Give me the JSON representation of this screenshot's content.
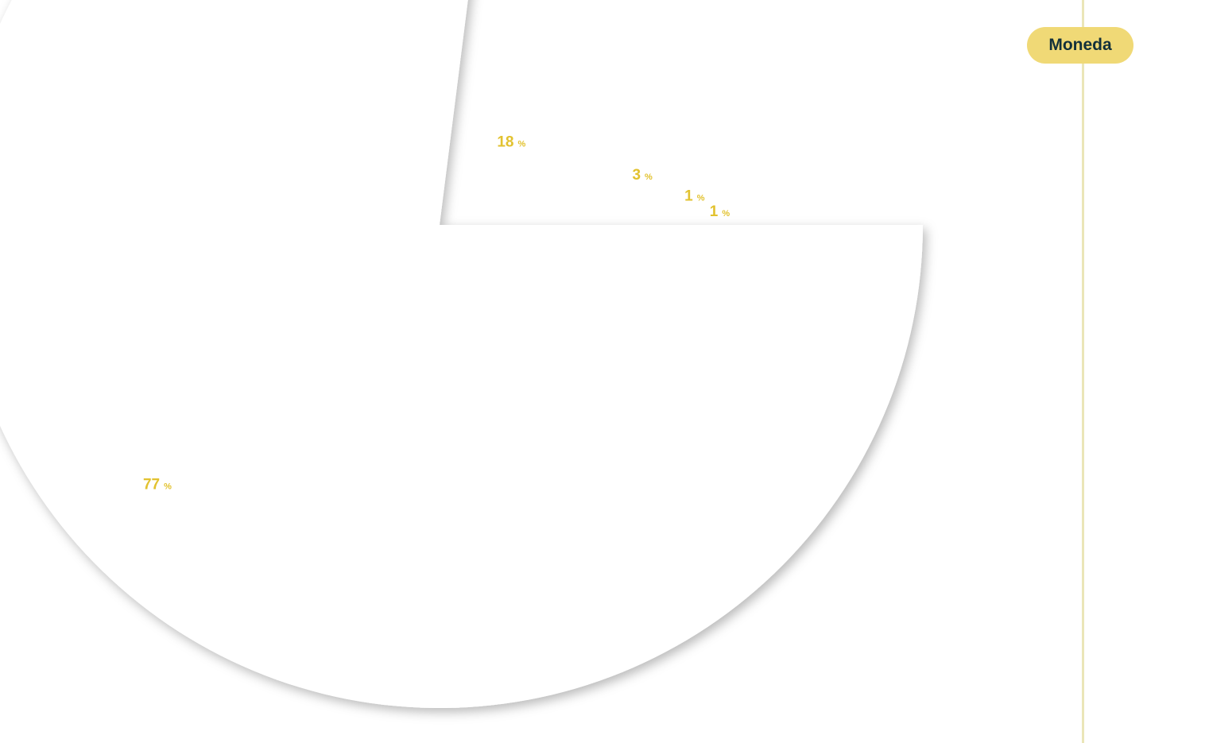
{
  "chart_data": {
    "type": "pie",
    "slices": [
      {
        "value": 77,
        "unit": "%"
      },
      {
        "value": 18,
        "unit": "%"
      },
      {
        "value": 3,
        "unit": "%"
      },
      {
        "value": 1,
        "unit": "%"
      },
      {
        "value": 1,
        "unit": "%"
      }
    ],
    "highlighted_slice_index": 0,
    "label_color": "#e2c22f",
    "slice_color": "#ffffff"
  },
  "legend": {
    "button_label": "Moneda",
    "button_color": "#f0d976",
    "button_text_color": "#12303a",
    "line_color": "#ebe6b8"
  }
}
